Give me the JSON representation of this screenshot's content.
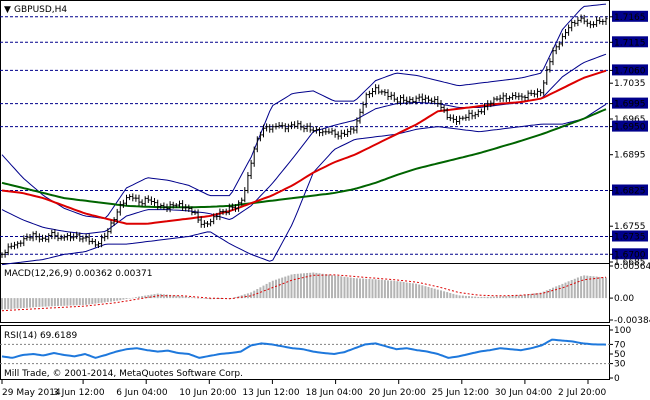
{
  "title": "GBPUSD,H4",
  "colors": {
    "background": "#ffffff",
    "frame": "#000000",
    "candle": "#000000",
    "bollinger": "#00008b",
    "ma_red": "#dc0000",
    "ma_green": "#006400",
    "level_line": "#00008b",
    "level_label_bg": "#00008b",
    "macd_hist": "#b4b4b4",
    "macd_signal": "#dc0000",
    "rsi_line": "#1e78dc",
    "rsi_levels": "#808080"
  },
  "price_panel": {
    "y_range": [
      1.6685,
      1.719
    ],
    "right_axis_labels": [
      "1.7165",
      "1.7115",
      "1.7060",
      "1.7035",
      "1.6995",
      "1.6965",
      "1.6950",
      "1.6895",
      "1.6825",
      "1.6755",
      "1.6735",
      "1.6700",
      "1.6685"
    ],
    "highlighted_levels": [
      "1.7165",
      "1.7115",
      "1.7060",
      "1.6995",
      "1.6950",
      "1.6825",
      "1.6735",
      "1.6700"
    ],
    "indicators": [
      "Bollinger Bands",
      "Moving Average (red)",
      "Moving Average (green)"
    ]
  },
  "macd_panel": {
    "label": "MACD(12,26,9) 0.00362 0.00371",
    "y_range": [
      -0.00384,
      0.00564
    ],
    "axis_labels": [
      "0.00564",
      "0.00",
      "-0.00384"
    ]
  },
  "rsi_panel": {
    "label": "RSI(14) 69.6189",
    "y_range": [
      0,
      100
    ],
    "axis_labels": [
      "100",
      "70",
      "50",
      "30",
      "0"
    ],
    "levels": [
      70,
      30
    ]
  },
  "copyright": "Mill Trade, © 2001-2014, MetaQuotes Software Corp.",
  "x_labels": [
    "29 May 2014",
    "3 Jun 12:00",
    "6 Jun 04:00",
    "10 Jun 20:00",
    "13 Jun 12:00",
    "18 Jun 04:00",
    "20 Jun 20:00",
    "25 Jun 12:00",
    "30 Jun 04:00",
    "2 Jul 20:00"
  ],
  "chart_data": {
    "type": "candlestick",
    "symbol": "GBPUSD",
    "timeframe": "H4",
    "x_range": [
      "29 May 2014",
      "2 Jul 20:00"
    ],
    "close_path": [
      [
        0,
        1.67
      ],
      [
        5,
        1.671
      ],
      [
        10,
        1.672
      ],
      [
        15,
        1.672
      ],
      [
        20,
        1.673
      ],
      [
        25,
        1.6735
      ],
      [
        30,
        1.674
      ],
      [
        35,
        1.6735
      ],
      [
        40,
        1.673
      ],
      [
        45,
        1.674
      ],
      [
        50,
        1.6745
      ],
      [
        55,
        1.673
      ],
      [
        60,
        1.674
      ],
      [
        65,
        1.6735
      ],
      [
        70,
        1.674
      ],
      [
        75,
        1.6735
      ],
      [
        80,
        1.6735
      ],
      [
        85,
        1.673
      ],
      [
        90,
        1.672
      ],
      [
        95,
        1.673
      ],
      [
        100,
        1.674
      ],
      [
        105,
        1.676
      ],
      [
        110,
        1.678
      ],
      [
        115,
        1.68
      ],
      [
        120,
        1.681
      ],
      [
        125,
        1.6815
      ],
      [
        130,
        1.6805
      ],
      [
        135,
        1.68
      ],
      [
        140,
        1.681
      ],
      [
        145,
        1.68
      ],
      [
        150,
        1.6795
      ],
      [
        155,
        1.679
      ],
      [
        160,
        1.679
      ],
      [
        165,
        1.6795
      ],
      [
        170,
        1.6795
      ],
      [
        175,
        1.679
      ],
      [
        180,
        1.6785
      ],
      [
        185,
        1.678
      ],
      [
        190,
        1.676
      ],
      [
        195,
        1.6755
      ],
      [
        200,
        1.676
      ],
      [
        205,
        1.677
      ],
      [
        210,
        1.678
      ],
      [
        215,
        1.678
      ],
      [
        220,
        1.679
      ],
      [
        225,
        1.679
      ],
      [
        230,
        1.68
      ],
      [
        235,
        1.683
      ],
      [
        240,
        1.688
      ],
      [
        245,
        1.692
      ],
      [
        250,
        1.694
      ],
      [
        255,
        1.695
      ],
      [
        260,
        1.6945
      ],
      [
        265,
        1.6955
      ],
      [
        270,
        1.695
      ],
      [
        275,
        1.695
      ],
      [
        280,
        1.6955
      ],
      [
        285,
        1.6955
      ],
      [
        290,
        1.695
      ],
      [
        295,
        1.695
      ],
      [
        300,
        1.6945
      ],
      [
        305,
        1.6945
      ],
      [
        310,
        1.694
      ],
      [
        315,
        1.6945
      ],
      [
        320,
        1.694
      ],
      [
        325,
        1.6935
      ],
      [
        330,
        1.694
      ],
      [
        335,
        1.6945
      ],
      [
        340,
        1.695
      ],
      [
        345,
        1.698
      ],
      [
        350,
        1.701
      ],
      [
        355,
        1.702
      ],
      [
        360,
        1.7025
      ],
      [
        365,
        1.702
      ],
      [
        370,
        1.7015
      ],
      [
        375,
        1.701
      ],
      [
        380,
        1.7
      ],
      [
        385,
        1.7005
      ],
      [
        390,
        1.7
      ],
      [
        395,
        1.7
      ],
      [
        400,
        1.7005
      ],
      [
        405,
        1.7005
      ],
      [
        410,
        1.7
      ],
      [
        415,
        1.7
      ],
      [
        420,
        1.6995
      ],
      [
        425,
        1.698
      ],
      [
        430,
        1.6965
      ],
      [
        435,
        1.696
      ],
      [
        440,
        1.696
      ],
      [
        445,
        1.6965
      ],
      [
        450,
        1.697
      ],
      [
        455,
        1.697
      ],
      [
        460,
        1.6975
      ],
      [
        465,
        1.6985
      ],
      [
        470,
        1.6995
      ],
      [
        475,
        1.7
      ],
      [
        480,
        1.7005
      ],
      [
        485,
        1.7005
      ],
      [
        490,
        1.7005
      ],
      [
        495,
        1.701
      ],
      [
        500,
        1.7005
      ],
      [
        505,
        1.701
      ],
      [
        510,
        1.7015
      ],
      [
        515,
        1.7015
      ],
      [
        520,
        1.702
      ],
      [
        525,
        1.706
      ],
      [
        530,
        1.7095
      ],
      [
        535,
        1.711
      ],
      [
        540,
        1.7125
      ],
      [
        545,
        1.7145
      ],
      [
        550,
        1.7155
      ],
      [
        555,
        1.716
      ],
      [
        560,
        1.7165
      ],
      [
        565,
        1.715
      ],
      [
        570,
        1.7155
      ],
      [
        575,
        1.716
      ],
      [
        580,
        1.716
      ],
      [
        583,
        1.7162
      ]
    ],
    "ma_red": [
      [
        0,
        1.6825
      ],
      [
        20,
        1.682
      ],
      [
        40,
        1.681
      ],
      [
        60,
        1.6795
      ],
      [
        80,
        1.678
      ],
      [
        100,
        1.677
      ],
      [
        120,
        1.676
      ],
      [
        140,
        1.676
      ],
      [
        160,
        1.6765
      ],
      [
        180,
        1.677
      ],
      [
        200,
        1.6775
      ],
      [
        220,
        1.6785
      ],
      [
        240,
        1.68
      ],
      [
        260,
        1.6815
      ],
      [
        280,
        1.6835
      ],
      [
        300,
        1.686
      ],
      [
        320,
        1.688
      ],
      [
        340,
        1.6895
      ],
      [
        360,
        1.6915
      ],
      [
        380,
        1.6935
      ],
      [
        400,
        1.6955
      ],
      [
        420,
        1.698
      ],
      [
        440,
        1.6985
      ],
      [
        460,
        1.699
      ],
      [
        480,
        1.6995
      ],
      [
        500,
        1.6998
      ],
      [
        520,
        1.7005
      ],
      [
        540,
        1.7025
      ],
      [
        560,
        1.7045
      ],
      [
        583,
        1.706
      ]
    ],
    "ma_green": [
      [
        0,
        1.684
      ],
      [
        20,
        1.683
      ],
      [
        40,
        1.682
      ],
      [
        60,
        1.681
      ],
      [
        80,
        1.6805
      ],
      [
        100,
        1.68
      ],
      [
        120,
        1.6795
      ],
      [
        140,
        1.6793
      ],
      [
        160,
        1.6792
      ],
      [
        180,
        1.6792
      ],
      [
        200,
        1.6793
      ],
      [
        220,
        1.6795
      ],
      [
        240,
        1.68
      ],
      [
        260,
        1.6805
      ],
      [
        280,
        1.681
      ],
      [
        300,
        1.6815
      ],
      [
        320,
        1.682
      ],
      [
        340,
        1.6828
      ],
      [
        360,
        1.684
      ],
      [
        380,
        1.6855
      ],
      [
        400,
        1.6868
      ],
      [
        420,
        1.6878
      ],
      [
        440,
        1.6888
      ],
      [
        460,
        1.6898
      ],
      [
        480,
        1.691
      ],
      [
        500,
        1.6922
      ],
      [
        520,
        1.6935
      ],
      [
        540,
        1.695
      ],
      [
        560,
        1.6965
      ],
      [
        583,
        1.6985
      ]
    ],
    "bb_upper": [
      [
        0,
        1.6895
      ],
      [
        20,
        1.685
      ],
      [
        40,
        1.6815
      ],
      [
        60,
        1.679
      ],
      [
        80,
        1.6775
      ],
      [
        100,
        1.677
      ],
      [
        120,
        1.683
      ],
      [
        140,
        1.685
      ],
      [
        160,
        1.6845
      ],
      [
        180,
        1.6835
      ],
      [
        200,
        1.6815
      ],
      [
        220,
        1.6815
      ],
      [
        240,
        1.689
      ],
      [
        260,
        1.699
      ],
      [
        280,
        1.7015
      ],
      [
        300,
        1.702
      ],
      [
        320,
        1.7
      ],
      [
        340,
        1.7
      ],
      [
        360,
        1.704
      ],
      [
        380,
        1.7055
      ],
      [
        400,
        1.705
      ],
      [
        420,
        1.704
      ],
      [
        440,
        1.703
      ],
      [
        460,
        1.7035
      ],
      [
        480,
        1.704
      ],
      [
        500,
        1.7045
      ],
      [
        520,
        1.7055
      ],
      [
        540,
        1.714
      ],
      [
        560,
        1.7185
      ],
      [
        583,
        1.719
      ]
    ],
    "bb_lower": [
      [
        0,
        1.668
      ],
      [
        20,
        1.6685
      ],
      [
        40,
        1.669
      ],
      [
        60,
        1.67
      ],
      [
        80,
        1.6705
      ],
      [
        100,
        1.672
      ],
      [
        120,
        1.672
      ],
      [
        140,
        1.6725
      ],
      [
        160,
        1.673
      ],
      [
        180,
        1.6735
      ],
      [
        200,
        1.6745
      ],
      [
        220,
        1.672
      ],
      [
        240,
        1.67
      ],
      [
        260,
        1.6685
      ],
      [
        280,
        1.676
      ],
      [
        300,
        1.686
      ],
      [
        320,
        1.6905
      ],
      [
        340,
        1.6925
      ],
      [
        360,
        1.693
      ],
      [
        380,
        1.6935
      ],
      [
        400,
        1.6945
      ],
      [
        420,
        1.695
      ],
      [
        440,
        1.6945
      ],
      [
        460,
        1.694
      ],
      [
        480,
        1.6945
      ],
      [
        500,
        1.695
      ],
      [
        520,
        1.6955
      ],
      [
        540,
        1.6955
      ],
      [
        560,
        1.6965
      ],
      [
        583,
        1.6995
      ]
    ],
    "macd_hist": [
      [
        0,
        -0.002
      ],
      [
        40,
        -0.0015
      ],
      [
        80,
        -0.0012
      ],
      [
        110,
        -0.0005
      ],
      [
        130,
        0.0002
      ],
      [
        150,
        0.0008
      ],
      [
        175,
        0.0003
      ],
      [
        200,
        -0.0002
      ],
      [
        220,
        -0.0001
      ],
      [
        240,
        0.001
      ],
      [
        260,
        0.003
      ],
      [
        280,
        0.0042
      ],
      [
        300,
        0.0045
      ],
      [
        320,
        0.004
      ],
      [
        340,
        0.0035
      ],
      [
        360,
        0.0033
      ],
      [
        380,
        0.003
      ],
      [
        400,
        0.0025
      ],
      [
        420,
        0.0015
      ],
      [
        440,
        0.0005
      ],
      [
        460,
        0.0002
      ],
      [
        480,
        0.0003
      ],
      [
        500,
        0.0005
      ],
      [
        520,
        0.001
      ],
      [
        540,
        0.0025
      ],
      [
        560,
        0.004
      ],
      [
        583,
        0.0036
      ]
    ],
    "macd_signal": [
      [
        0,
        -0.0022
      ],
      [
        40,
        -0.0018
      ],
      [
        80,
        -0.0014
      ],
      [
        110,
        -0.0008
      ],
      [
        130,
        -0.0002
      ],
      [
        150,
        0.0004
      ],
      [
        175,
        0.0004
      ],
      [
        200,
        0.0
      ],
      [
        220,
        -0.0001
      ],
      [
        240,
        0.0004
      ],
      [
        260,
        0.0018
      ],
      [
        280,
        0.0032
      ],
      [
        300,
        0.004
      ],
      [
        320,
        0.0041
      ],
      [
        340,
        0.0038
      ],
      [
        360,
        0.0035
      ],
      [
        380,
        0.0032
      ],
      [
        400,
        0.0028
      ],
      [
        420,
        0.002
      ],
      [
        440,
        0.001
      ],
      [
        460,
        0.0005
      ],
      [
        480,
        0.0004
      ],
      [
        500,
        0.0005
      ],
      [
        520,
        0.0008
      ],
      [
        540,
        0.0018
      ],
      [
        560,
        0.0032
      ],
      [
        583,
        0.0037
      ]
    ],
    "rsi": [
      [
        0,
        45
      ],
      [
        10,
        42
      ],
      [
        20,
        48
      ],
      [
        30,
        50
      ],
      [
        40,
        47
      ],
      [
        50,
        52
      ],
      [
        60,
        48
      ],
      [
        70,
        45
      ],
      [
        80,
        50
      ],
      [
        90,
        42
      ],
      [
        100,
        48
      ],
      [
        110,
        55
      ],
      [
        120,
        60
      ],
      [
        130,
        62
      ],
      [
        140,
        58
      ],
      [
        150,
        55
      ],
      [
        160,
        57
      ],
      [
        170,
        52
      ],
      [
        180,
        50
      ],
      [
        190,
        42
      ],
      [
        200,
        46
      ],
      [
        210,
        50
      ],
      [
        220,
        52
      ],
      [
        230,
        55
      ],
      [
        240,
        68
      ],
      [
        250,
        72
      ],
      [
        260,
        70
      ],
      [
        270,
        66
      ],
      [
        280,
        62
      ],
      [
        290,
        60
      ],
      [
        300,
        55
      ],
      [
        310,
        52
      ],
      [
        320,
        50
      ],
      [
        330,
        54
      ],
      [
        340,
        62
      ],
      [
        350,
        70
      ],
      [
        360,
        72
      ],
      [
        370,
        66
      ],
      [
        380,
        60
      ],
      [
        390,
        62
      ],
      [
        400,
        58
      ],
      [
        410,
        55
      ],
      [
        420,
        50
      ],
      [
        430,
        42
      ],
      [
        440,
        45
      ],
      [
        450,
        50
      ],
      [
        460,
        55
      ],
      [
        470,
        58
      ],
      [
        480,
        62
      ],
      [
        490,
        60
      ],
      [
        500,
        58
      ],
      [
        510,
        62
      ],
      [
        520,
        68
      ],
      [
        530,
        80
      ],
      [
        540,
        78
      ],
      [
        550,
        76
      ],
      [
        560,
        72
      ],
      [
        570,
        70
      ],
      [
        583,
        69.6189
      ]
    ]
  }
}
